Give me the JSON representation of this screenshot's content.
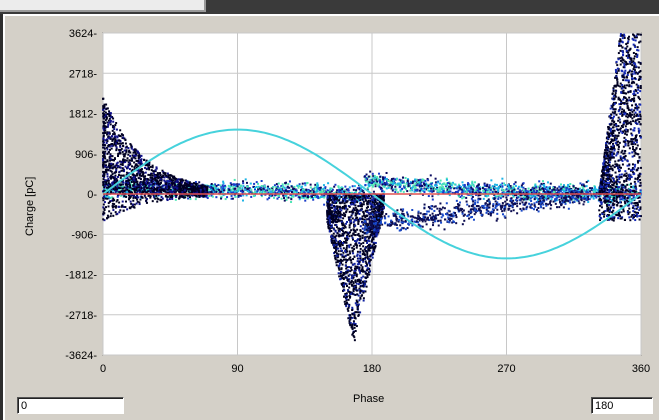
{
  "chart_data": {
    "type": "scatter",
    "title": "",
    "xlabel": "Phase",
    "ylabel": "Charge [pC]",
    "xlim": [
      0,
      360
    ],
    "ylim": [
      -3624,
      3624
    ],
    "x_ticks": [
      "0",
      "90",
      "180",
      "270",
      "360"
    ],
    "y_ticks": [
      "3624",
      "2718",
      "1812",
      "906",
      "0",
      "-906",
      "-1812",
      "-2718",
      "-3624"
    ],
    "grid": true,
    "reference_curves": [
      {
        "name": "sine",
        "color": "#46d2dc",
        "amplitude": 1450,
        "period": 360
      },
      {
        "name": "zero",
        "color": "#e05050",
        "value": 0
      }
    ],
    "clusters": [
      {
        "x": [
          0,
          60
        ],
        "y": [
          -500,
          2200
        ],
        "density": "high"
      },
      {
        "x": [
          150,
          190
        ],
        "y": [
          -3400,
          300
        ],
        "density": "high"
      },
      {
        "x": [
          175,
          330
        ],
        "y": [
          -800,
          500
        ],
        "density": "medium"
      },
      {
        "x": [
          335,
          360
        ],
        "y": [
          -500,
          3600
        ],
        "density": "high"
      }
    ]
  },
  "phase_min_value": "0",
  "phase_max_value": "180"
}
